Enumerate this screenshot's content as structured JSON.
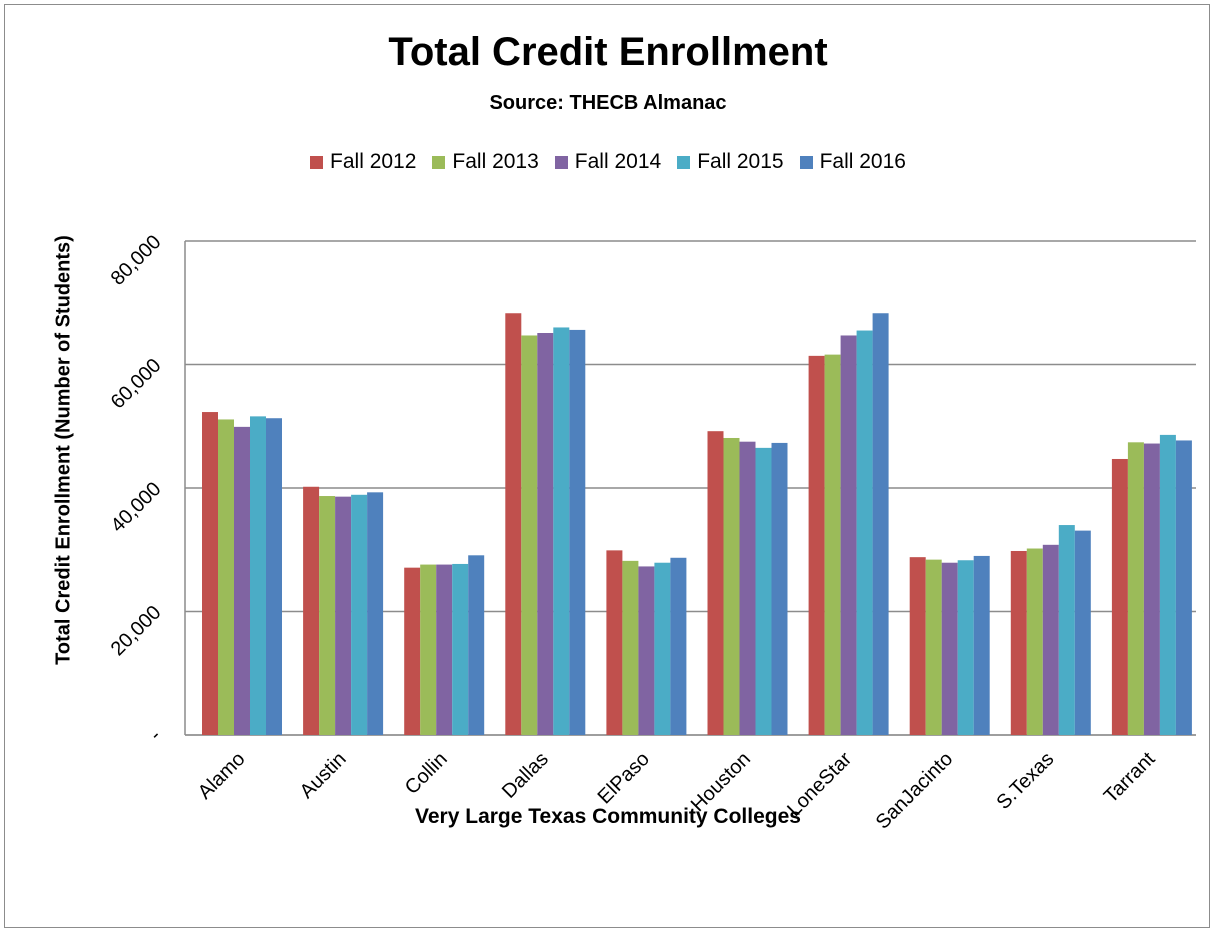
{
  "chart_data": {
    "type": "bar",
    "title": "Total Credit  Enrollment",
    "subtitle": "Source: THECB Almanac",
    "xlabel": "Very Large Texas Community Colleges",
    "ylabel": "Total Credit Enrollment (Number of Students)",
    "ylim": [
      0,
      80000
    ],
    "yticks": [
      0,
      20000,
      40000,
      60000,
      80000
    ],
    "ytick_labels": [
      "-",
      "20,000",
      "40,000",
      "60,000",
      "80,000"
    ],
    "grid": true,
    "legend_position": "top",
    "categories": [
      "Alamo",
      "Austin",
      "Collin",
      "Dallas",
      "ElPaso",
      "Houston",
      "LoneStar",
      "SanJacinto",
      "S.Texas",
      "Tarrant"
    ],
    "series": [
      {
        "name": "Fall 2012",
        "color": "#c0504d",
        "values": [
          52300,
          40200,
          27100,
          68300,
          29900,
          49200,
          61400,
          28800,
          29800,
          44700
        ]
      },
      {
        "name": "Fall 2013",
        "color": "#9bbb59",
        "values": [
          51100,
          38700,
          27600,
          64700,
          28200,
          48100,
          61600,
          28400,
          30200,
          47400
        ]
      },
      {
        "name": "Fall 2014",
        "color": "#8064a2",
        "values": [
          49900,
          38600,
          27600,
          65100,
          27300,
          47500,
          64700,
          27900,
          30800,
          47200
        ]
      },
      {
        "name": "Fall 2015",
        "color": "#4bacc6",
        "values": [
          51600,
          38900,
          27700,
          66000,
          27900,
          46500,
          65500,
          28300,
          34000,
          48600
        ]
      },
      {
        "name": "Fall 2016",
        "color": "#4f81bd",
        "values": [
          51300,
          39300,
          29100,
          65600,
          28700,
          47300,
          68300,
          29000,
          33100,
          47700
        ]
      }
    ]
  }
}
